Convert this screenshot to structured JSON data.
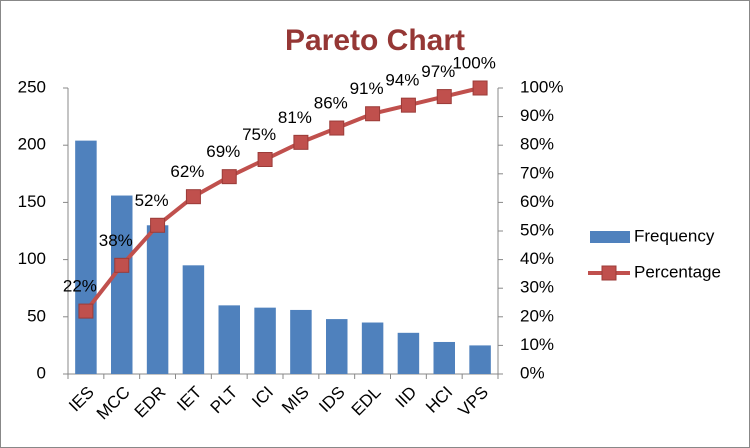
{
  "chart_data": {
    "type": "bar",
    "title": "Pareto Chart",
    "categories": [
      "IES",
      "MCC",
      "EDR",
      "IET",
      "PLT",
      "ICI",
      "MIS",
      "IDS",
      "EDL",
      "IID",
      "HCI",
      "VPS"
    ],
    "series": [
      {
        "name": "Frequency",
        "type": "bar",
        "color": "#4f81bd",
        "values": [
          204,
          156,
          130,
          95,
          60,
          58,
          56,
          48,
          45,
          36,
          28,
          25
        ]
      },
      {
        "name": "Percentage",
        "type": "line",
        "axis": "y2",
        "color": "#c0504d",
        "values": [
          22,
          38,
          52,
          62,
          69,
          75,
          81,
          86,
          91,
          94,
          97,
          100
        ],
        "value_labels": [
          "22%",
          "38%",
          "52%",
          "62%",
          "69%",
          "75%",
          "81%",
          "86%",
          "91%",
          "94%",
          "97%",
          "100%"
        ]
      }
    ],
    "ylim": [
      0,
      250
    ],
    "yticks": [
      0,
      50,
      100,
      150,
      200,
      250
    ],
    "y2lim": [
      0,
      100
    ],
    "y2ticks": [
      {
        "value": 0,
        "label": "0%"
      },
      {
        "value": 10,
        "label": "10%"
      },
      {
        "value": 20,
        "label": "20%"
      },
      {
        "value": 30,
        "label": "30%"
      },
      {
        "value": 40,
        "label": "40%"
      },
      {
        "value": 50,
        "label": "50%"
      },
      {
        "value": 60,
        "label": "60%"
      },
      {
        "value": 70,
        "label": "70%"
      },
      {
        "value": 80,
        "label": "80%"
      },
      {
        "value": 90,
        "label": "90%"
      },
      {
        "value": 100,
        "label": "100%"
      }
    ],
    "grid": false,
    "legend": "right"
  }
}
